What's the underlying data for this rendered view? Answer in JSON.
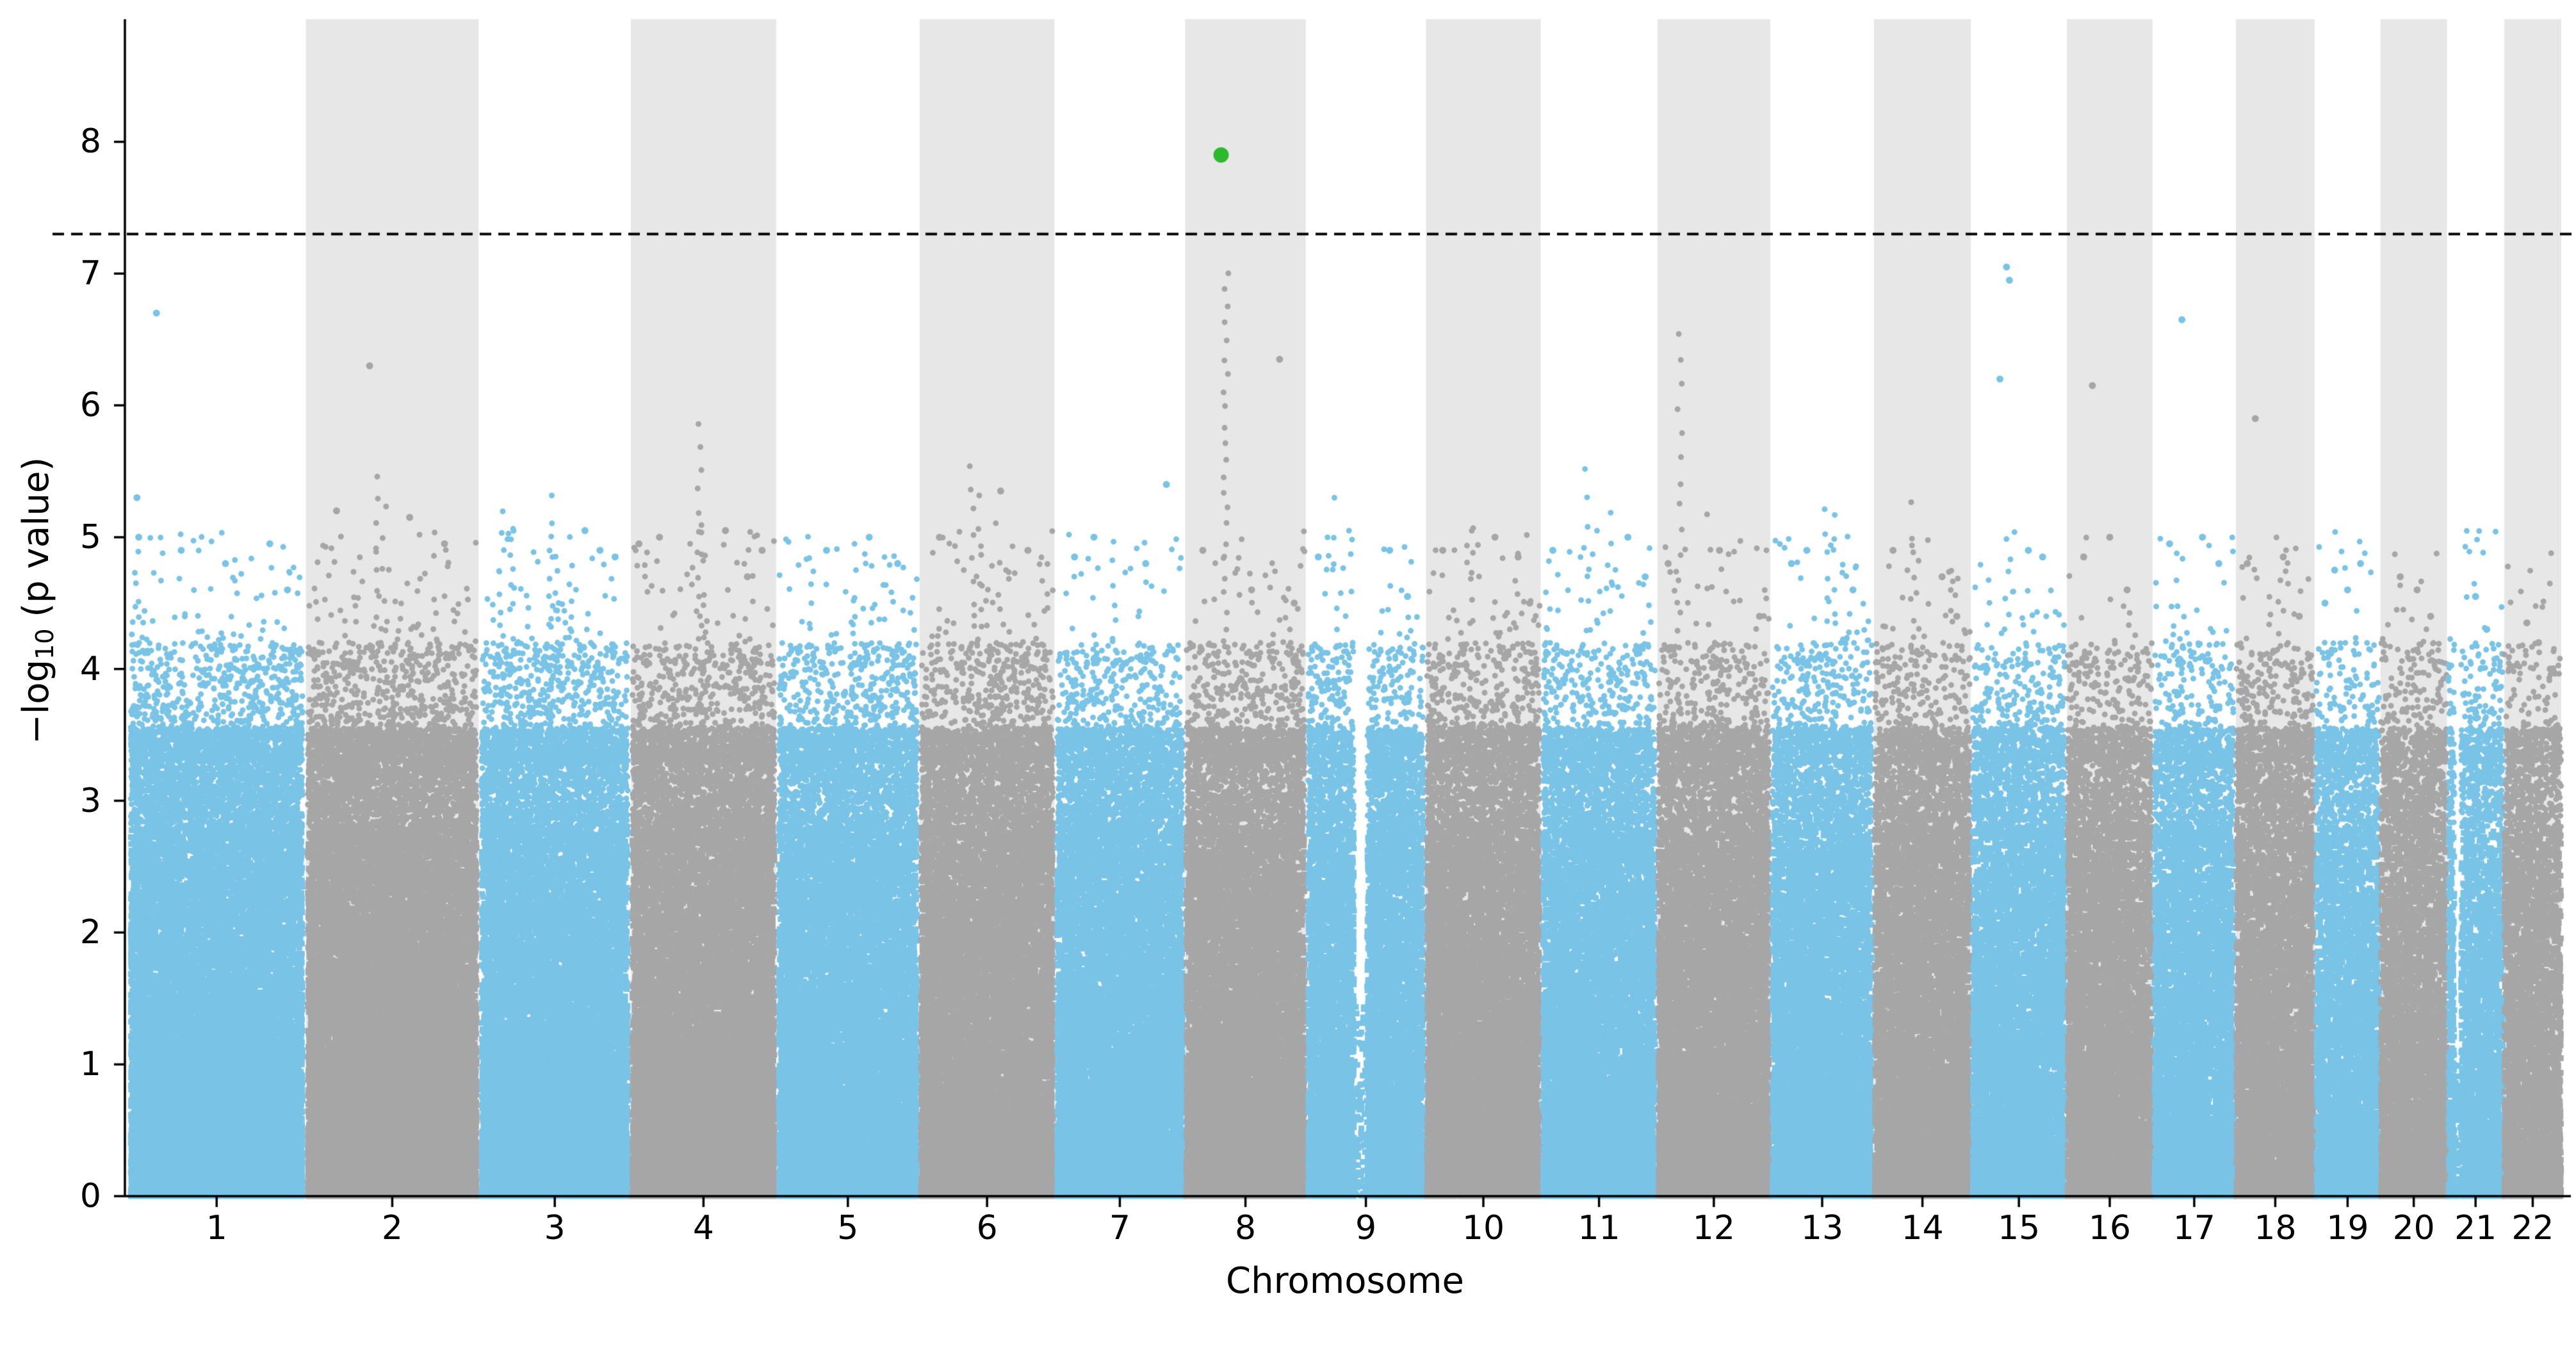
{
  "chart_data": {
    "type": "scatter",
    "variant": "manhattan-plot",
    "title": "",
    "xlabel": "Chromosome",
    "ylabel": {
      "pre": "−log",
      "sub": "10",
      "post": " (p value)"
    },
    "ylim": [
      0,
      8.93
    ],
    "yticks": [
      0,
      1,
      2,
      3,
      4,
      5,
      6,
      7,
      8
    ],
    "grid": false,
    "legend": "none",
    "significance_line": {
      "y": 7.3,
      "style": "dashed",
      "color": "#000000"
    },
    "colors": {
      "odd": "#79C3E6",
      "even": "#A6A6A6",
      "band": "#E7E7E7",
      "highlight": "#2DB92D",
      "axis": "#000000"
    },
    "points_per_mb": 85,
    "seed": 7,
    "highlight": {
      "chr": "8",
      "pos": 0.3,
      "y": 7.9
    },
    "chromosomes": [
      {
        "label": "1",
        "length_mb": 249,
        "points": [
          {
            "pos": 0.05,
            "y": 5.3
          },
          {
            "pos": 0.06,
            "y": 5.0
          },
          {
            "pos": 0.16,
            "y": 6.7
          },
          {
            "pos": 0.3,
            "y": 4.9
          },
          {
            "pos": 0.55,
            "y": 4.8
          },
          {
            "pos": 0.8,
            "y": 4.95
          },
          {
            "pos": 0.9,
            "y": 4.6
          }
        ],
        "towers": [
          {
            "pos": 0.05,
            "top": 4.9,
            "bottom": 3.6,
            "count": 6
          }
        ]
      },
      {
        "label": "2",
        "length_mb": 243,
        "points": [
          {
            "pos": 0.37,
            "y": 6.3
          },
          {
            "pos": 0.18,
            "y": 5.2
          },
          {
            "pos": 0.6,
            "y": 5.15
          },
          {
            "pos": 0.8,
            "y": 4.95
          }
        ],
        "towers": [
          {
            "pos": 0.42,
            "top": 5.45,
            "bottom": 3.5,
            "count": 12
          },
          {
            "pos": 0.45,
            "top": 5.25,
            "bottom": 3.8,
            "count": 7
          }
        ]
      },
      {
        "label": "3",
        "length_mb": 198,
        "points": [
          {
            "pos": 0.7,
            "y": 5.05
          },
          {
            "pos": 0.8,
            "y": 4.9
          },
          {
            "pos": 0.9,
            "y": 4.85
          }
        ],
        "towers": [
          {
            "pos": 0.15,
            "top": 5.2,
            "bottom": 3.5,
            "count": 12
          },
          {
            "pos": 0.22,
            "top": 5.05,
            "bottom": 3.6,
            "count": 8
          },
          {
            "pos": 0.48,
            "top": 5.3,
            "bottom": 3.7,
            "count": 9
          },
          {
            "pos": 0.6,
            "top": 5.0,
            "bottom": 3.8,
            "count": 6
          }
        ]
      },
      {
        "label": "4",
        "length_mb": 190,
        "points": [
          {
            "pos": 0.06,
            "y": 4.95
          },
          {
            "pos": 0.2,
            "y": 5.0
          },
          {
            "pos": 0.65,
            "y": 5.05
          },
          {
            "pos": 0.8,
            "y": 4.7
          },
          {
            "pos": 0.9,
            "y": 4.9
          }
        ],
        "towers": [
          {
            "pos": 0.475,
            "top": 5.85,
            "bottom": 3.4,
            "count": 16
          },
          {
            "pos": 0.5,
            "top": 5.1,
            "bottom": 3.8,
            "count": 6
          }
        ]
      },
      {
        "label": "5",
        "length_mb": 182,
        "points": [
          {
            "pos": 0.35,
            "y": 4.9
          },
          {
            "pos": 0.65,
            "y": 5.0
          },
          {
            "pos": 0.85,
            "y": 4.8
          }
        ],
        "towers": [
          {
            "pos": 0.23,
            "top": 5.0,
            "bottom": 3.5,
            "count": 10
          },
          {
            "pos": 0.54,
            "top": 4.95,
            "bottom": 3.6,
            "count": 8
          },
          {
            "pos": 0.75,
            "top": 4.85,
            "bottom": 3.7,
            "count": 6
          }
        ]
      },
      {
        "label": "6",
        "length_mb": 171,
        "points": [
          {
            "pos": 0.15,
            "y": 5.0
          },
          {
            "pos": 0.6,
            "y": 5.35
          },
          {
            "pos": 0.8,
            "y": 4.9
          }
        ],
        "towers": [
          {
            "pos": 0.39,
            "top": 5.55,
            "bottom": 3.6,
            "count": 12
          },
          {
            "pos": 0.45,
            "top": 5.3,
            "bottom": 3.8,
            "count": 8
          },
          {
            "pos": 0.55,
            "top": 5.1,
            "bottom": 3.9,
            "count": 5
          }
        ]
      },
      {
        "label": "7",
        "length_mb": 159,
        "points": [
          {
            "pos": 0.15,
            "y": 4.85
          },
          {
            "pos": 0.3,
            "y": 5.0
          },
          {
            "pos": 0.7,
            "y": 4.8
          },
          {
            "pos": 0.86,
            "y": 5.4
          }
        ],
        "towers": [
          {
            "pos": 0.45,
            "top": 4.95,
            "bottom": 3.6,
            "count": 10
          }
        ]
      },
      {
        "label": "8",
        "length_mb": 146,
        "points": [
          {
            "pos": 0.78,
            "y": 6.35
          },
          {
            "pos": 0.15,
            "y": 4.9
          },
          {
            "pos": 0.55,
            "y": 4.6
          },
          {
            "pos": 0.9,
            "y": 4.5
          }
        ],
        "towers": [
          {
            "pos": 0.34,
            "top": 7.0,
            "bottom": 3.3,
            "count": 30
          }
        ]
      },
      {
        "label": "9",
        "length_mb": 141,
        "points": [
          {
            "pos": 0.1,
            "y": 4.85
          },
          {
            "pos": 0.7,
            "y": 4.9
          },
          {
            "pos": 0.85,
            "y": 4.55
          }
        ],
        "towers": [
          {
            "pos": 0.24,
            "top": 5.3,
            "bottom": 3.9,
            "count": 6
          }
        ],
        "gaps": [
          {
            "start": 0.4,
            "end": 0.51,
            "keep": 0.07,
            "max": 1.45
          }
        ]
      },
      {
        "label": "10",
        "length_mb": 136,
        "points": [
          {
            "pos": 0.15,
            "y": 4.9
          },
          {
            "pos": 0.6,
            "y": 5.0
          },
          {
            "pos": 0.8,
            "y": 4.85
          },
          {
            "pos": 0.9,
            "y": 4.5
          }
        ],
        "towers": [
          {
            "pos": 0.4,
            "top": 5.05,
            "bottom": 3.8,
            "count": 8
          }
        ]
      },
      {
        "label": "11",
        "length_mb": 135,
        "points": [
          {
            "pos": 0.1,
            "y": 4.9
          },
          {
            "pos": 0.75,
            "y": 5.0
          },
          {
            "pos": 0.9,
            "y": 4.7
          }
        ],
        "towers": [
          {
            "pos": 0.39,
            "top": 5.5,
            "bottom": 3.7,
            "count": 10
          },
          {
            "pos": 0.6,
            "top": 5.2,
            "bottom": 3.9,
            "count": 6
          }
        ]
      },
      {
        "label": "12",
        "length_mb": 133,
        "points": [
          {
            "pos": 0.1,
            "y": 4.8
          },
          {
            "pos": 0.55,
            "y": 4.9
          },
          {
            "pos": 0.9,
            "y": 4.4
          }
        ],
        "towers": [
          {
            "pos": 0.2,
            "top": 6.55,
            "bottom": 4.3,
            "count": 13
          },
          {
            "pos": 0.45,
            "top": 5.15,
            "bottom": 3.8,
            "count": 6
          }
        ]
      },
      {
        "label": "13",
        "length_mb": 114,
        "points": [
          {
            "pos": 0.2,
            "y": 4.8
          },
          {
            "pos": 0.35,
            "y": 4.9
          },
          {
            "pos": 0.8,
            "y": 4.6
          }
        ],
        "towers": [
          {
            "pos": 0.54,
            "top": 5.2,
            "bottom": 3.7,
            "count": 10
          },
          {
            "pos": 0.62,
            "top": 5.15,
            "bottom": 3.8,
            "count": 6
          }
        ]
      },
      {
        "label": "14",
        "length_mb": 107,
        "points": [
          {
            "pos": 0.2,
            "y": 4.9
          },
          {
            "pos": 0.7,
            "y": 4.7
          },
          {
            "pos": 0.85,
            "y": 4.4
          }
        ],
        "towers": [
          {
            "pos": 0.41,
            "top": 5.25,
            "bottom": 3.8,
            "count": 6
          }
        ]
      },
      {
        "label": "15",
        "length_mb": 102,
        "points": [
          {
            "pos": 0.37,
            "y": 7.05
          },
          {
            "pos": 0.4,
            "y": 6.95
          },
          {
            "pos": 0.3,
            "y": 6.2
          },
          {
            "pos": 0.6,
            "y": 4.9
          },
          {
            "pos": 0.75,
            "y": 4.85
          }
        ],
        "towers": [
          {
            "pos": 0.37,
            "top": 5.0,
            "bottom": 3.8,
            "count": 6
          }
        ]
      },
      {
        "label": "16",
        "length_mb": 90,
        "points": [
          {
            "pos": 0.3,
            "y": 6.15
          },
          {
            "pos": 0.2,
            "y": 4.85
          },
          {
            "pos": 0.5,
            "y": 5.0
          },
          {
            "pos": 0.7,
            "y": 4.6
          }
        ],
        "towers": []
      },
      {
        "label": "17",
        "length_mb": 83,
        "points": [
          {
            "pos": 0.35,
            "y": 6.65
          },
          {
            "pos": 0.2,
            "y": 4.95
          },
          {
            "pos": 0.6,
            "y": 5.0
          },
          {
            "pos": 0.8,
            "y": 4.8
          }
        ],
        "towers": [
          {
            "pos": 0.3,
            "top": 4.9,
            "bottom": 3.8,
            "count": 6
          }
        ]
      },
      {
        "label": "18",
        "length_mb": 80,
        "points": [
          {
            "pos": 0.25,
            "y": 5.9
          },
          {
            "pos": 0.15,
            "y": 4.8
          },
          {
            "pos": 0.6,
            "y": 4.85
          },
          {
            "pos": 0.8,
            "y": 4.4
          }
        ],
        "towers": []
      },
      {
        "label": "19",
        "length_mb": 59,
        "points": [
          {
            "pos": 0.15,
            "y": 4.5
          },
          {
            "pos": 0.3,
            "y": 4.75
          },
          {
            "pos": 0.5,
            "y": 4.6
          },
          {
            "pos": 0.7,
            "y": 4.8
          }
        ],
        "towers": []
      },
      {
        "label": "20",
        "length_mb": 63,
        "points": [
          {
            "pos": 0.3,
            "y": 4.7
          },
          {
            "pos": 0.55,
            "y": 4.6
          },
          {
            "pos": 0.75,
            "y": 4.4
          }
        ],
        "towers": []
      },
      {
        "label": "21",
        "length_mb": 48,
        "points": [
          {
            "pos": 0.5,
            "y": 4.55
          },
          {
            "pos": 0.7,
            "y": 4.3
          }
        ],
        "towers": [],
        "gaps": [
          {
            "start": 0.12,
            "end": 0.24,
            "keep": 0.12,
            "max": 1.0
          }
        ]
      },
      {
        "label": "22",
        "length_mb": 51,
        "points": [
          {
            "pos": 0.4,
            "y": 4.35
          },
          {
            "pos": 0.6,
            "y": 4.2
          },
          {
            "pos": 0.8,
            "y": 4.0
          }
        ],
        "towers": []
      }
    ]
  }
}
